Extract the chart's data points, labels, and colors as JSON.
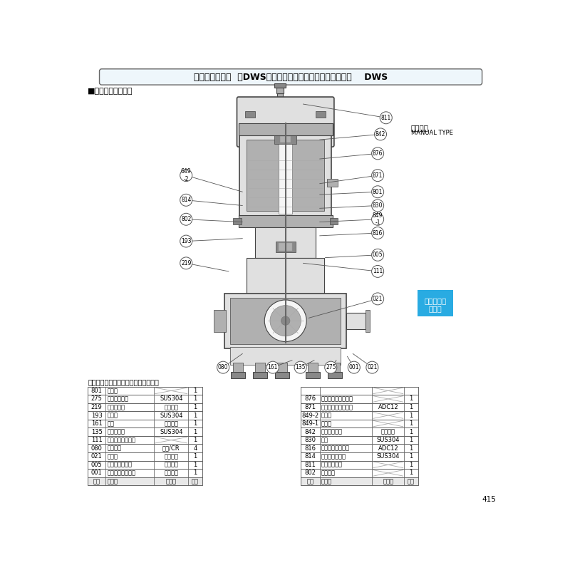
{
  "title_text": "》DWS型樹脂製汚水・雑排水用水中ポンプ",
  "title_prefix": "【ダーウィン】",
  "title_brand": "DWS",
  "subtitle": "■構造断面図（例）",
  "manual_type_ja": "非自動形",
  "manual_type_en": "MANUAL TYPE",
  "note": "注）主軸材料はポンプ側を示します。",
  "page_number": "415",
  "cyan_box_line1": "汚水・汚物",
  "cyan_box_line2": "水処理",
  "cyan_color": "#29ABE2",
  "bg_color": "#FFFFFF",
  "left_table": [
    [
      "801",
      "ロータ",
      "",
      "1"
    ],
    [
      "275",
      "羽根車ボルト",
      "SUS304",
      "1"
    ],
    [
      "219",
      "相フランジ",
      "合成樹脂",
      "1"
    ],
    [
      "193",
      "注油栓",
      "SUS304",
      "1"
    ],
    [
      "161",
      "底板",
      "合成樹脂",
      "1"
    ],
    [
      "135",
      "羽根裸底金",
      "SUS304",
      "1"
    ],
    [
      "111",
      "メカニカルシール",
      "",
      "1"
    ],
    [
      "080",
      "ポンプ脚",
      "ゴム/CR",
      "4"
    ],
    [
      "021",
      "羽根車",
      "合成樹脂",
      "1"
    ],
    [
      "005",
      "中間ケーシング",
      "合成樹脂",
      "1"
    ],
    [
      "001",
      "ポンプケーシング",
      "合成樹脂",
      "1"
    ],
    [
      "番号",
      "部品名",
      "材　料",
      "個数"
    ]
  ],
  "right_table": [
    [
      "",
      "",
      "",
      ""
    ],
    [
      "876",
      "電動機焼損防止装置",
      "",
      "1"
    ],
    [
      "871",
      "反負荷側ブラケット",
      "ADC12",
      "1"
    ],
    [
      "849-2",
      "玉軸受",
      "",
      "1"
    ],
    [
      "849-1",
      "玉軸受",
      "",
      "1"
    ],
    [
      "842",
      "電動機カバー",
      "合成樹脂",
      "1"
    ],
    [
      "830",
      "主軸",
      "SUS304",
      "1"
    ],
    [
      "816",
      "負荷側ブラケット",
      "ADC12",
      "1"
    ],
    [
      "814",
      "電動機フレーム",
      "SUS304",
      "1"
    ],
    [
      "811",
      "水中ケーブル",
      "",
      "1"
    ],
    [
      "802",
      "ステータ",
      "",
      "1"
    ],
    [
      "番号",
      "部品名",
      "材　料",
      "個数"
    ]
  ]
}
